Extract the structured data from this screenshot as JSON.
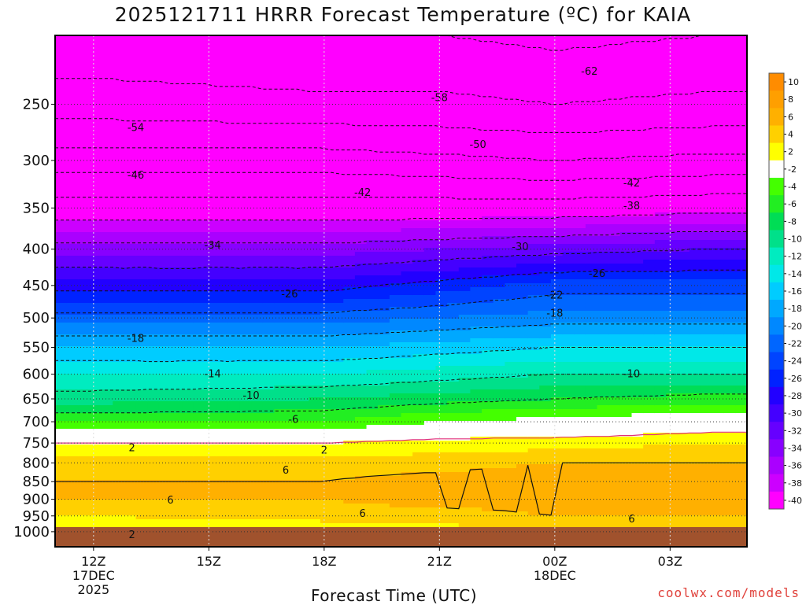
{
  "title": "2025121711 HRRR Forecast Temperature (ºC) for KAIA",
  "credit": "coolwx.com/models",
  "chart_data": {
    "type": "contour",
    "title": "2025121711 HRRR Forecast Temperature (ºC) for KAIA",
    "xlabel": "Forecast Time (UTC)",
    "ylabel": "",
    "x_ticks": [
      {
        "label": "12Z",
        "sub": [
          "17DEC",
          "2025"
        ]
      },
      {
        "label": "15Z",
        "sub": []
      },
      {
        "label": "18Z",
        "sub": []
      },
      {
        "label": "21Z",
        "sub": []
      },
      {
        "label": "00Z",
        "sub": [
          "18DEC"
        ]
      },
      {
        "label": "03Z",
        "sub": []
      }
    ],
    "x_range_hours": [
      -1,
      17
    ],
    "y_scale": "log-pressure",
    "y_range": [
      1050,
      200
    ],
    "y_ticks": [
      250,
      300,
      350,
      400,
      450,
      500,
      550,
      600,
      650,
      700,
      750,
      800,
      850,
      900,
      950,
      1000
    ],
    "grid": true,
    "ground_color": "#a0522d",
    "colorbar": {
      "bins": [
        {
          "v": 10,
          "color": "#ff8c00"
        },
        {
          "v": 8,
          "color": "#ff9f00"
        },
        {
          "v": 6,
          "color": "#ffb000"
        },
        {
          "v": 4,
          "color": "#ffd000"
        },
        {
          "v": 2,
          "color": "#ffff00"
        },
        {
          "v": -2,
          "color": "#ffffff"
        },
        {
          "v": -4,
          "color": "#44ff00"
        },
        {
          "v": -6,
          "color": "#22ee22"
        },
        {
          "v": -8,
          "color": "#00dd55"
        },
        {
          "v": -10,
          "color": "#00e08a"
        },
        {
          "v": -12,
          "color": "#00ecc0"
        },
        {
          "v": -14,
          "color": "#00e8e8"
        },
        {
          "v": -16,
          "color": "#00ccff"
        },
        {
          "v": -18,
          "color": "#00a8ff"
        },
        {
          "v": -20,
          "color": "#0088ff"
        },
        {
          "v": -22,
          "color": "#0066ff"
        },
        {
          "v": -24,
          "color": "#0044ff"
        },
        {
          "v": -26,
          "color": "#0022ff"
        },
        {
          "v": -28,
          "color": "#2200ff"
        },
        {
          "v": -30,
          "color": "#4400ff"
        },
        {
          "v": -32,
          "color": "#6600ff"
        },
        {
          "v": -34,
          "color": "#8800ff"
        },
        {
          "v": -36,
          "color": "#aa00ff"
        },
        {
          "v": -38,
          "color": "#cc00ff"
        },
        {
          "v": -40,
          "color": "#ff00ff"
        }
      ]
    },
    "temperature_profile": [
      {
        "hour": 0,
        "points": [
          [
            250,
            -56
          ],
          [
            300,
            -48
          ],
          [
            350,
            -40
          ],
          [
            400,
            -33
          ],
          [
            450,
            -27
          ],
          [
            500,
            -21
          ],
          [
            550,
            -16
          ],
          [
            600,
            -12
          ],
          [
            650,
            -9
          ],
          [
            700,
            -4
          ],
          [
            750,
            2
          ],
          [
            800,
            5
          ],
          [
            850,
            6
          ],
          [
            900,
            6
          ],
          [
            950,
            4
          ],
          [
            1000,
            2
          ]
        ]
      },
      {
        "hour": 6,
        "points": [
          [
            250,
            -57
          ],
          [
            300,
            -48
          ],
          [
            350,
            -40
          ],
          [
            400,
            -33
          ],
          [
            450,
            -27
          ],
          [
            500,
            -21
          ],
          [
            550,
            -16
          ],
          [
            600,
            -12
          ],
          [
            650,
            -8
          ],
          [
            700,
            -4
          ],
          [
            750,
            2
          ],
          [
            800,
            5
          ],
          [
            850,
            6
          ],
          [
            900,
            6
          ],
          [
            950,
            5
          ],
          [
            1000,
            2
          ]
        ]
      },
      {
        "hour": 9,
        "points": [
          [
            250,
            -57
          ],
          [
            300,
            -49
          ],
          [
            350,
            -40
          ],
          [
            400,
            -32
          ],
          [
            450,
            -25
          ],
          [
            500,
            -20
          ],
          [
            550,
            -15
          ],
          [
            600,
            -11
          ],
          [
            650,
            -7
          ],
          [
            700,
            -2
          ],
          [
            750,
            3
          ],
          [
            800,
            5
          ],
          [
            850,
            7
          ],
          [
            900,
            7
          ],
          [
            950,
            5
          ],
          [
            1000,
            3
          ]
        ]
      },
      {
        "hour": 12,
        "points": [
          [
            250,
            -58
          ],
          [
            300,
            -50
          ],
          [
            350,
            -40
          ],
          [
            400,
            -31
          ],
          [
            450,
            -23
          ],
          [
            500,
            -19
          ],
          [
            550,
            -14
          ],
          [
            600,
            -10
          ],
          [
            650,
            -6
          ],
          [
            700,
            -1
          ],
          [
            750,
            3
          ],
          [
            800,
            6
          ],
          [
            850,
            8
          ],
          [
            900,
            7
          ],
          [
            950,
            6
          ],
          [
            1000,
            4
          ]
        ]
      },
      {
        "hour": 16,
        "points": [
          [
            250,
            -57
          ],
          [
            300,
            -49
          ],
          [
            350,
            -39
          ],
          [
            400,
            -30
          ],
          [
            450,
            -23
          ],
          [
            500,
            -19
          ],
          [
            550,
            -14
          ],
          [
            600,
            -10
          ],
          [
            650,
            -5
          ],
          [
            700,
            0
          ],
          [
            750,
            4
          ],
          [
            800,
            6
          ],
          [
            850,
            8
          ],
          [
            900,
            7
          ],
          [
            950,
            6
          ],
          [
            1000,
            4
          ]
        ]
      }
    ],
    "contours": [
      {
        "value": -62,
        "label_x_hour": 12.9,
        "label_p": 225
      },
      {
        "value": -58,
        "label_x_hour": 9.0,
        "label_p": 245
      },
      {
        "value": -54,
        "label_x_hour": 1.1,
        "label_p": 270
      },
      {
        "value": -50,
        "label_x_hour": 10.0,
        "label_p": 285
      },
      {
        "value": -46,
        "label_x_hour": 1.1,
        "label_p": 315
      },
      {
        "value": -42,
        "label_x_hour": 7.0,
        "label_p": 333
      },
      {
        "value": -42,
        "label_x_hour": 14.0,
        "label_p": 323
      },
      {
        "value": -38,
        "label_x_hour": 14.0,
        "label_p": 348
      },
      {
        "value": -34,
        "label_x_hour": 3.1,
        "label_p": 395
      },
      {
        "value": -30,
        "label_x_hour": 11.1,
        "label_p": 397
      },
      {
        "value": -26,
        "label_x_hour": 5.1,
        "label_p": 463
      },
      {
        "value": -26,
        "label_x_hour": 13.1,
        "label_p": 433
      },
      {
        "value": -22,
        "label_x_hour": 12.0,
        "label_p": 465
      },
      {
        "value": -18,
        "label_x_hour": 12.0,
        "label_p": 493
      },
      {
        "value": -18,
        "label_x_hour": 1.1,
        "label_p": 535
      },
      {
        "value": -14,
        "label_x_hour": 3.1,
        "label_p": 600
      },
      {
        "value": -10,
        "label_x_hour": 4.1,
        "label_p": 643
      },
      {
        "value": -10,
        "label_x_hour": 14.0,
        "label_p": 600
      },
      {
        "value": -6,
        "label_x_hour": 5.2,
        "label_p": 695
      },
      {
        "value": 2,
        "label_x_hour": 1.0,
        "label_p": 762
      },
      {
        "value": 2,
        "label_x_hour": 6.0,
        "label_p": 768
      },
      {
        "value": 6,
        "label_x_hour": 5.0,
        "label_p": 820
      },
      {
        "value": 6,
        "label_x_hour": 2.0,
        "label_p": 903
      },
      {
        "value": 6,
        "label_x_hour": 7.0,
        "label_p": 943
      },
      {
        "value": 6,
        "label_x_hour": 14.0,
        "label_p": 960
      },
      {
        "value": 2,
        "label_x_hour": 1.0,
        "label_p": 1010
      }
    ]
  }
}
